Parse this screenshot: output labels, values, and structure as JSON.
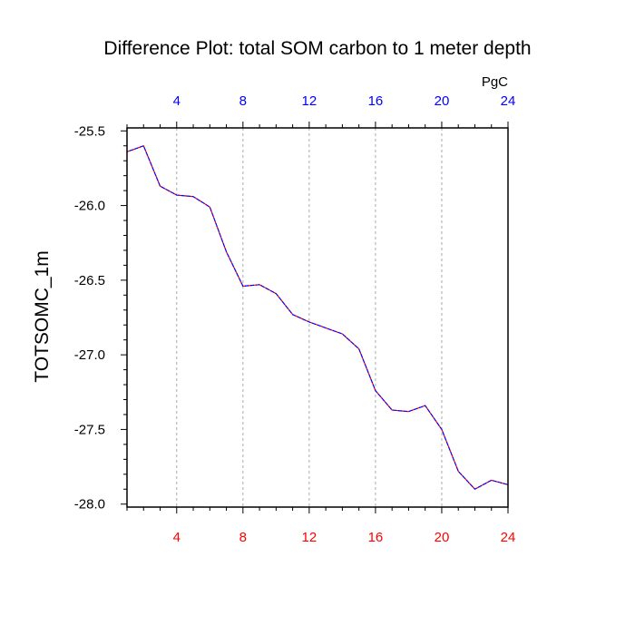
{
  "chart_data": {
    "type": "line",
    "title": "Difference Plot: total SOM carbon to 1 meter depth",
    "units": "PgC",
    "ylabel": "TOTSOMC_1m",
    "xlim": [
      1,
      24
    ],
    "ylim": [
      -28.02,
      -25.48
    ],
    "x_ticks": [
      4,
      8,
      12,
      16,
      20,
      24
    ],
    "y_ticks": [
      -25.5,
      -26.0,
      -26.5,
      -27.0,
      -27.5,
      -28.0
    ],
    "y_tick_labels": [
      "-25.5",
      "-26.0",
      "-26.5",
      "-27.0",
      "-27.5",
      "-28.0"
    ],
    "x_top_tick_color": "#0000ff",
    "x_bottom_tick_color": "#ff0000",
    "grid_x": true,
    "grid_y": false,
    "series": [
      {
        "color_primary": "#ff0000",
        "color_secondary": "#0000ff",
        "style": "dashed",
        "x": [
          1,
          2,
          3,
          4,
          5,
          6,
          7,
          8,
          9,
          10,
          11,
          12,
          13,
          14,
          15,
          16,
          17,
          18,
          19,
          20,
          21,
          22,
          23,
          24
        ],
        "values": [
          -25.64,
          -25.6,
          -25.87,
          -25.93,
          -25.94,
          -26.01,
          -26.31,
          -26.54,
          -26.53,
          -26.59,
          -26.73,
          -26.78,
          -26.82,
          -26.86,
          -26.96,
          -27.24,
          -27.37,
          -27.38,
          -27.34,
          -27.5,
          -27.78,
          -27.9,
          -27.84,
          -27.87
        ]
      }
    ]
  }
}
